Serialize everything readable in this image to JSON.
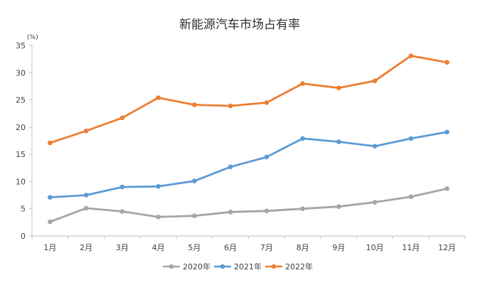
{
  "chart_data": {
    "type": "line",
    "title": "新能源汽车市场占有率",
    "y_unit": "(%)",
    "xlabel": "",
    "ylabel": "",
    "categories": [
      "1月",
      "2月",
      "3月",
      "4月",
      "5月",
      "6月",
      "7月",
      "8月",
      "9月",
      "10月",
      "11月",
      "12月"
    ],
    "ylim": [
      0,
      35
    ],
    "yticks": [
      0,
      5,
      10,
      15,
      20,
      25,
      30,
      35
    ],
    "grid": false,
    "legend_position": "bottom",
    "series": [
      {
        "name": "2020年",
        "color": "#a5a5a5",
        "values": [
          2.6,
          5.1,
          4.5,
          3.5,
          3.7,
          4.4,
          4.6,
          5.0,
          5.4,
          6.2,
          7.2,
          8.7
        ]
      },
      {
        "name": "2021年",
        "color": "#5b9bd5",
        "values": [
          7.1,
          7.5,
          9.0,
          9.1,
          10.1,
          12.7,
          14.5,
          17.9,
          17.3,
          16.5,
          17.9,
          19.1
        ]
      },
      {
        "name": "2022年",
        "color": "#ed7d31",
        "values": [
          17.1,
          19.3,
          21.7,
          25.4,
          24.1,
          23.9,
          24.5,
          28.0,
          27.2,
          28.5,
          33.1,
          31.9
        ]
      }
    ]
  }
}
